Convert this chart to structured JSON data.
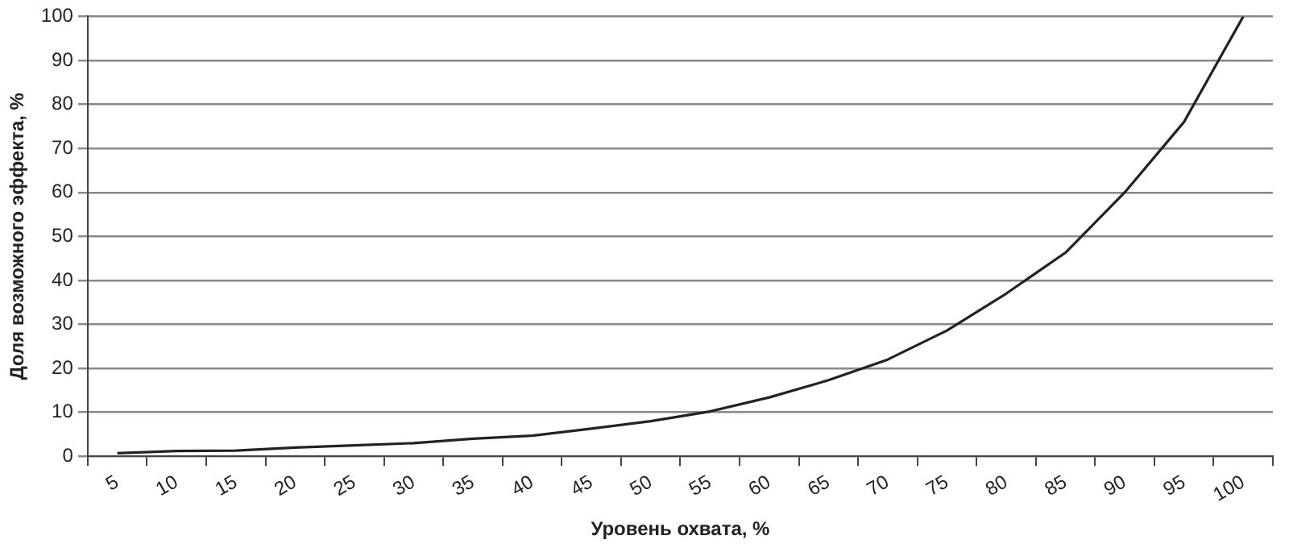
{
  "chart_data": {
    "type": "line",
    "xlabel": "Уровень охвата, %",
    "ylabel": "Доля возможного эффекта, %",
    "categories": [
      "5",
      "10",
      "15",
      "20",
      "25",
      "30",
      "35",
      "40",
      "45",
      "50",
      "55",
      "60",
      "65",
      "70",
      "75",
      "80",
      "85",
      "90",
      "95",
      "100"
    ],
    "series": [
      {
        "color": "#222222",
        "values": [
          0.7,
          1.2,
          1.3,
          2,
          2.5,
          3,
          4,
          4.7,
          6.3,
          8,
          10.2,
          13.4,
          17.3,
          22,
          28.6,
          37,
          46.3,
          60,
          76,
          100
        ]
      }
    ],
    "ylim": [
      0,
      100
    ],
    "yticks": [
      0,
      10,
      20,
      30,
      40,
      50,
      60,
      70,
      80,
      90,
      100
    ],
    "grid": "y",
    "legend": false,
    "marker": "none",
    "line_style": "solid"
  }
}
